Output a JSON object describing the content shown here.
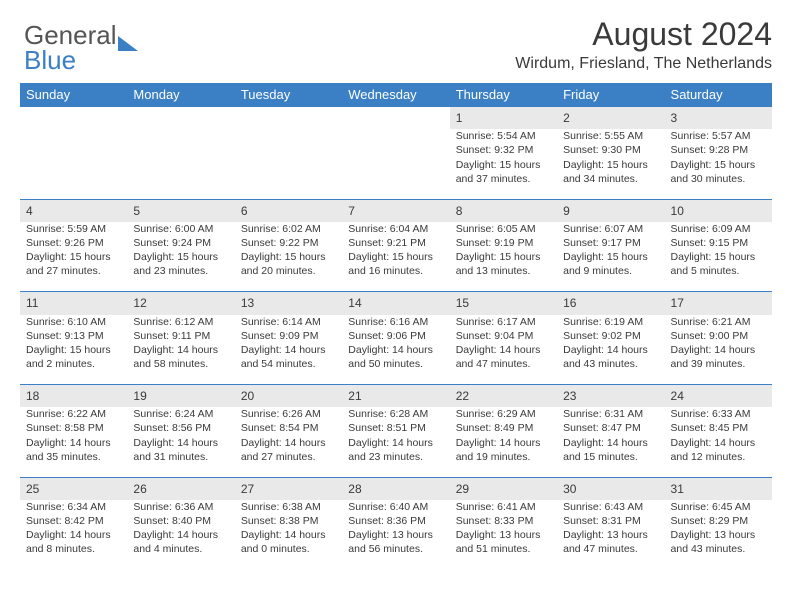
{
  "brand": {
    "part1": "General",
    "part2": "Blue"
  },
  "title": "August 2024",
  "location": "Wirdum, Friesland, The Netherlands",
  "colors": {
    "header_bg": "#3b7fc4",
    "header_text": "#ffffff",
    "daynum_bg": "#e9e9e9",
    "row_border": "#3b7fc4",
    "text": "#3a3a3a",
    "background": "#ffffff"
  },
  "typography": {
    "title_fontsize": 32,
    "location_fontsize": 16,
    "header_fontsize": 13,
    "daynum_fontsize": 12,
    "cell_fontsize": 10.5
  },
  "days_of_week": [
    "Sunday",
    "Monday",
    "Tuesday",
    "Wednesday",
    "Thursday",
    "Friday",
    "Saturday"
  ],
  "weeks": [
    [
      null,
      null,
      null,
      null,
      {
        "n": "1",
        "sunrise": "5:54 AM",
        "sunset": "9:32 PM",
        "daylight": "15 hours and 37 minutes."
      },
      {
        "n": "2",
        "sunrise": "5:55 AM",
        "sunset": "9:30 PM",
        "daylight": "15 hours and 34 minutes."
      },
      {
        "n": "3",
        "sunrise": "5:57 AM",
        "sunset": "9:28 PM",
        "daylight": "15 hours and 30 minutes."
      }
    ],
    [
      {
        "n": "4",
        "sunrise": "5:59 AM",
        "sunset": "9:26 PM",
        "daylight": "15 hours and 27 minutes."
      },
      {
        "n": "5",
        "sunrise": "6:00 AM",
        "sunset": "9:24 PM",
        "daylight": "15 hours and 23 minutes."
      },
      {
        "n": "6",
        "sunrise": "6:02 AM",
        "sunset": "9:22 PM",
        "daylight": "15 hours and 20 minutes."
      },
      {
        "n": "7",
        "sunrise": "6:04 AM",
        "sunset": "9:21 PM",
        "daylight": "15 hours and 16 minutes."
      },
      {
        "n": "8",
        "sunrise": "6:05 AM",
        "sunset": "9:19 PM",
        "daylight": "15 hours and 13 minutes."
      },
      {
        "n": "9",
        "sunrise": "6:07 AM",
        "sunset": "9:17 PM",
        "daylight": "15 hours and 9 minutes."
      },
      {
        "n": "10",
        "sunrise": "6:09 AM",
        "sunset": "9:15 PM",
        "daylight": "15 hours and 5 minutes."
      }
    ],
    [
      {
        "n": "11",
        "sunrise": "6:10 AM",
        "sunset": "9:13 PM",
        "daylight": "15 hours and 2 minutes."
      },
      {
        "n": "12",
        "sunrise": "6:12 AM",
        "sunset": "9:11 PM",
        "daylight": "14 hours and 58 minutes."
      },
      {
        "n": "13",
        "sunrise": "6:14 AM",
        "sunset": "9:09 PM",
        "daylight": "14 hours and 54 minutes."
      },
      {
        "n": "14",
        "sunrise": "6:16 AM",
        "sunset": "9:06 PM",
        "daylight": "14 hours and 50 minutes."
      },
      {
        "n": "15",
        "sunrise": "6:17 AM",
        "sunset": "9:04 PM",
        "daylight": "14 hours and 47 minutes."
      },
      {
        "n": "16",
        "sunrise": "6:19 AM",
        "sunset": "9:02 PM",
        "daylight": "14 hours and 43 minutes."
      },
      {
        "n": "17",
        "sunrise": "6:21 AM",
        "sunset": "9:00 PM",
        "daylight": "14 hours and 39 minutes."
      }
    ],
    [
      {
        "n": "18",
        "sunrise": "6:22 AM",
        "sunset": "8:58 PM",
        "daylight": "14 hours and 35 minutes."
      },
      {
        "n": "19",
        "sunrise": "6:24 AM",
        "sunset": "8:56 PM",
        "daylight": "14 hours and 31 minutes."
      },
      {
        "n": "20",
        "sunrise": "6:26 AM",
        "sunset": "8:54 PM",
        "daylight": "14 hours and 27 minutes."
      },
      {
        "n": "21",
        "sunrise": "6:28 AM",
        "sunset": "8:51 PM",
        "daylight": "14 hours and 23 minutes."
      },
      {
        "n": "22",
        "sunrise": "6:29 AM",
        "sunset": "8:49 PM",
        "daylight": "14 hours and 19 minutes."
      },
      {
        "n": "23",
        "sunrise": "6:31 AM",
        "sunset": "8:47 PM",
        "daylight": "14 hours and 15 minutes."
      },
      {
        "n": "24",
        "sunrise": "6:33 AM",
        "sunset": "8:45 PM",
        "daylight": "14 hours and 12 minutes."
      }
    ],
    [
      {
        "n": "25",
        "sunrise": "6:34 AM",
        "sunset": "8:42 PM",
        "daylight": "14 hours and 8 minutes."
      },
      {
        "n": "26",
        "sunrise": "6:36 AM",
        "sunset": "8:40 PM",
        "daylight": "14 hours and 4 minutes."
      },
      {
        "n": "27",
        "sunrise": "6:38 AM",
        "sunset": "8:38 PM",
        "daylight": "14 hours and 0 minutes."
      },
      {
        "n": "28",
        "sunrise": "6:40 AM",
        "sunset": "8:36 PM",
        "daylight": "13 hours and 56 minutes."
      },
      {
        "n": "29",
        "sunrise": "6:41 AM",
        "sunset": "8:33 PM",
        "daylight": "13 hours and 51 minutes."
      },
      {
        "n": "30",
        "sunrise": "6:43 AM",
        "sunset": "8:31 PM",
        "daylight": "13 hours and 47 minutes."
      },
      {
        "n": "31",
        "sunrise": "6:45 AM",
        "sunset": "8:29 PM",
        "daylight": "13 hours and 43 minutes."
      }
    ]
  ],
  "labels": {
    "sunrise": "Sunrise:",
    "sunset": "Sunset:",
    "daylight": "Daylight:"
  }
}
